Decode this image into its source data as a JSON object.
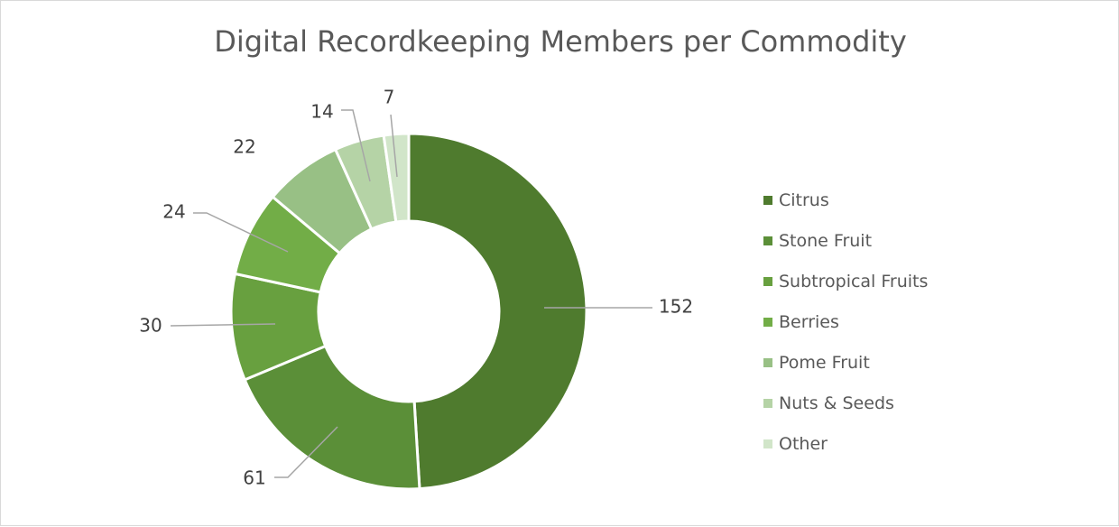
{
  "chart_data": {
    "type": "pie",
    "subtype": "doughnut",
    "title": "Digital Recordkeeping Members per Commodity",
    "legend_position": "right",
    "slices": [
      {
        "label": "Citrus",
        "value": 152,
        "color": "#4f7b2e"
      },
      {
        "label": "Stone Fruit",
        "value": 61,
        "color": "#5b8f38"
      },
      {
        "label": "Subtropical Fruits",
        "value": 30,
        "color": "#68a03f"
      },
      {
        "label": "Berries",
        "value": 24,
        "color": "#72ad47"
      },
      {
        "label": "Pome Fruit",
        "value": 22,
        "color": "#98c085"
      },
      {
        "label": "Nuts & Seeds",
        "value": 14,
        "color": "#b5d3a6"
      },
      {
        "label": "Other",
        "value": 7,
        "color": "#d1e5c9"
      }
    ]
  }
}
